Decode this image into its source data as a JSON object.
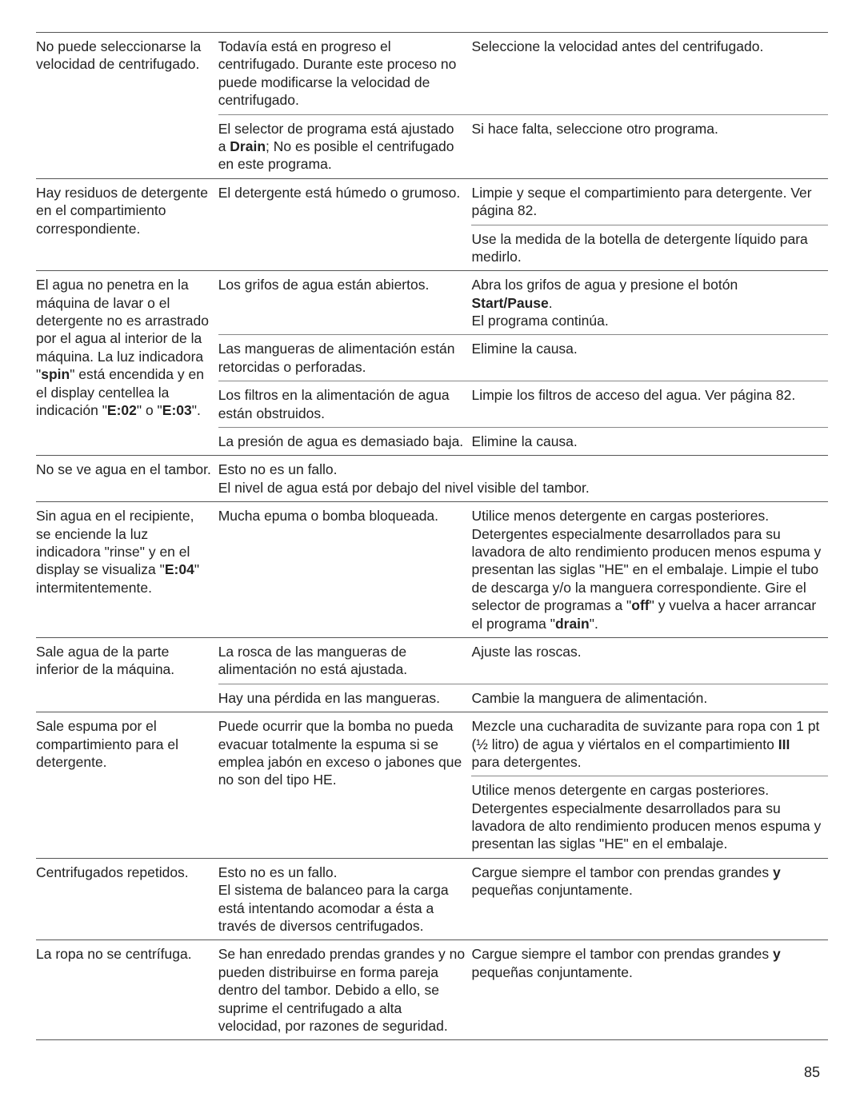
{
  "page_number": "85",
  "rows": [
    {
      "problem": "No puede seleccionarse la velocidad de centrifugado.",
      "cause": "Todavía está en progreso el centrifugado. Durante este proceso no puede modificarse la velocidad de centrifugado.",
      "remedy": "Seleccione la velocidad antes del centrifugado."
    },
    {
      "problem": "",
      "cause_html": "El selector de programa está ajustado a <b>Drain</b>; No es posible el centrifugado en este programa.",
      "remedy": "Si hace falta, seleccione otro programa."
    },
    {
      "problem": "Hay residuos de detergente en el compartimiento correspondiente.",
      "cause": "El detergente está húmedo o grumoso.",
      "remedy": "Limpie y seque el compartimiento para detergente. Ver página 82."
    },
    {
      "remedy": "Use la medida de la botella de detergente líquido para medirlo."
    },
    {
      "problem_html": "El agua no penetra en la máquina de lavar o el detergente no es arrastrado por el agua al interior de la máquina. La luz indicadora \"<b>spin</b>\" está encendida y en el display centellea la indicación \"<b>E:02</b>\" o \"<b>E:03</b>\".",
      "cause": "Los grifos de agua están abiertos.",
      "remedy_html": "Abra los grifos de agua y presione el botón <b>Start/Pause</b>.<br>El programa continúa."
    },
    {
      "cause": "Las mangueras de alimentación están retorcidas o perforadas.",
      "remedy": "Elimine la causa."
    },
    {
      "cause": "Los filtros en la alimentación de agua están obstruidos.",
      "remedy": "Limpie los filtros de acceso del agua. Ver página 82."
    },
    {
      "cause": "La presión de agua es demasiado baja.",
      "remedy": "Elimine la causa."
    },
    {
      "problem": "No se ve agua en el tambor.",
      "cause_html": "Esto no es un fallo.<br>El nivel de agua está por debajo del nivel visible del tambor.",
      "remedy": ""
    },
    {
      "problem_html": "Sin agua en el recipiente, se enciende la luz indicadora \"rinse\" y en el display se visualiza \"<b>E:04</b>\" intermitentemente.",
      "cause": "Mucha epuma o bomba bloqueada.",
      "remedy_html": "Utilice menos detergente en cargas posteriores. Detergentes especialmente desarrollados para su lavadora de alto rendimiento producen menos espuma y presentan las siglas \"HE\" en el embalaje. Limpie el tubo de descarga y/o la manguera correspondiente. Gire el selector de programas a \"<b>off</b>\" y vuelva a hacer arrancar el programa \"<b>drain</b>\"."
    },
    {
      "problem": "Sale agua de la parte inferior de la máquina.",
      "cause": "La rosca de las mangueras de alimentación no está ajustada.",
      "remedy": "Ajuste las roscas."
    },
    {
      "cause": "Hay una pérdida en las mangueras.",
      "remedy": "Cambie la manguera de alimentación."
    },
    {
      "problem": "Sale espuma por el compartimiento para el detergente.",
      "cause": "Puede ocurrir que la bomba no pueda evacuar totalmente la espuma si se emplea jabón en exceso o jabones que no son del tipo HE.",
      "remedy_html": "Mezcle una cucharadita de suvizante para ropa con 1 pt (½ litro) de agua y viértalos en el compartimiento <b>III</b> para detergentes."
    },
    {
      "remedy": "Utilice menos detergente en cargas posteriores. Detergentes especialmente desarrollados para su lavadora de alto rendimiento producen menos espuma y presentan las siglas \"HE\" en el embalaje."
    },
    {
      "problem": "Centrifugados repetidos.",
      "cause_html": "Esto no es un fallo.<br>El sistema de balanceo para la carga está intentando acomodar a ésta a través de diversos centrifugados.",
      "remedy_html": "Cargue siempre el tambor con prendas grandes <b>y</b> pequeñas conjuntamente."
    },
    {
      "problem": "La ropa no se centrífuga.",
      "cause": "Se han enredado prendas grandes y no pueden distribuirse en forma pareja dentro del tambor. Debido a ello, se suprime el centrifugado a alta velocidad, por razones de seguridad.",
      "remedy_html": "Cargue siempre el tambor con prendas grandes <b>y</b> pequeñas conjuntamente."
    }
  ]
}
